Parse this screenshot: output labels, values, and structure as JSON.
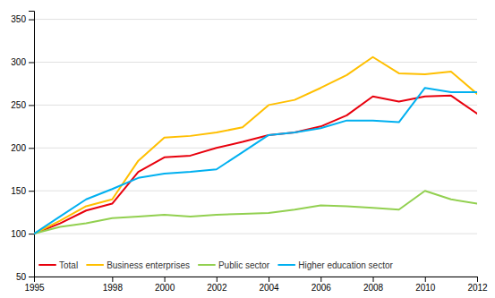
{
  "chart_data": {
    "type": "line",
    "x": [
      1995,
      1996,
      1997,
      1998,
      1999,
      2000,
      2001,
      2002,
      2003,
      2004,
      2005,
      2006,
      2007,
      2008,
      2009,
      2010,
      2011,
      2012
    ],
    "series": [
      {
        "name": "Total",
        "color": "#e8000d",
        "values": [
          100,
          112,
          127,
          135,
          172,
          189,
          191,
          200,
          207,
          215,
          218,
          225,
          238,
          260,
          254,
          260,
          261,
          240
        ]
      },
      {
        "name": "Business enterprises",
        "color": "#ffbf00",
        "values": [
          100,
          115,
          132,
          140,
          185,
          212,
          214,
          218,
          224,
          250,
          256,
          270,
          285,
          306,
          287,
          286,
          289,
          263
        ]
      },
      {
        "name": "Public sector",
        "color": "#92d050",
        "values": [
          100,
          108,
          112,
          118,
          120,
          122,
          120,
          122,
          123,
          124,
          128,
          133,
          132,
          130,
          128,
          150,
          140,
          135
        ]
      },
      {
        "name": "Higher education sector",
        "color": "#00b0f0",
        "values": [
          100,
          120,
          140,
          152,
          165,
          170,
          172,
          175,
          195,
          215,
          218,
          223,
          232,
          232,
          230,
          270,
          265,
          265
        ]
      }
    ],
    "xlim": [
      1995,
      2012
    ],
    "xticks": [
      1995,
      1998,
      2000,
      2002,
      2004,
      2006,
      2008,
      2010,
      2012
    ],
    "ylim": [
      50,
      360
    ],
    "yticks": [
      50,
      100,
      150,
      200,
      250,
      300,
      350
    ],
    "grid": true,
    "legend": "lower left"
  }
}
